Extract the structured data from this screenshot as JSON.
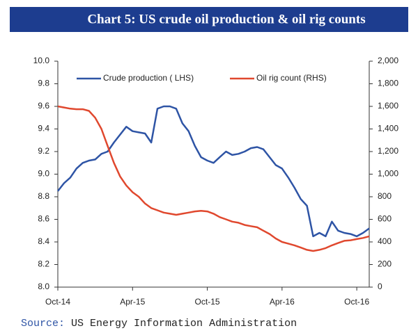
{
  "chart_data": {
    "type": "line",
    "title": "Chart 5: US crude oil production & oil rig counts",
    "source_label": "Source:",
    "source_text": "US Energy Information Administration",
    "categories": [
      "Oct-14",
      null,
      null,
      null,
      null,
      null,
      null,
      null,
      null,
      null,
      null,
      null,
      "Apr-15",
      null,
      null,
      null,
      null,
      null,
      null,
      null,
      null,
      null,
      null,
      null,
      "Oct-15",
      null,
      null,
      null,
      null,
      null,
      null,
      null,
      null,
      null,
      null,
      null,
      "Apr-16",
      null,
      null,
      null,
      null,
      null,
      null,
      null,
      null,
      null,
      null,
      null,
      "Oct-16",
      null,
      null
    ],
    "series": [
      {
        "name": "Crude production ( LHS)",
        "color": "#2e54a5",
        "axis": "y",
        "values": [
          8.85,
          8.92,
          8.97,
          9.05,
          9.1,
          9.12,
          9.13,
          9.18,
          9.2,
          9.28,
          9.35,
          9.42,
          9.38,
          9.37,
          9.36,
          9.28,
          9.58,
          9.6,
          9.6,
          9.58,
          9.45,
          9.38,
          9.25,
          9.15,
          9.12,
          9.1,
          9.15,
          9.2,
          9.17,
          9.18,
          9.2,
          9.23,
          9.24,
          9.22,
          9.15,
          9.08,
          9.05,
          8.97,
          8.88,
          8.78,
          8.72,
          8.45,
          8.48,
          8.45,
          8.58,
          8.5,
          8.48,
          8.47,
          8.45,
          8.48,
          8.52
        ]
      },
      {
        "name": "Oil rig count (RHS)",
        "color": "#e0482e",
        "axis": "y2",
        "values": [
          1600,
          1590,
          1580,
          1575,
          1575,
          1560,
          1500,
          1400,
          1250,
          1100,
          980,
          900,
          840,
          800,
          740,
          700,
          680,
          660,
          650,
          640,
          650,
          660,
          670,
          675,
          670,
          650,
          620,
          600,
          580,
          570,
          550,
          540,
          530,
          500,
          470,
          430,
          400,
          385,
          370,
          350,
          330,
          320,
          330,
          345,
          370,
          390,
          410,
          415,
          425,
          435,
          450
        ]
      }
    ],
    "ylim": [
      8.0,
      10.0
    ],
    "yticks": [
      {
        "value": 10,
        "label": "10.0"
      },
      9.8,
      9.6,
      9.4,
      9.2,
      {
        "value": 9,
        "label": "9.0"
      },
      8.8,
      8.6,
      8.4,
      8.2,
      {
        "value": 8,
        "label": "8.0"
      }
    ],
    "y2lim": [
      0,
      2000
    ],
    "y2ticks": [
      {
        "value": 2000,
        "label": "2,000"
      },
      {
        "value": 1800,
        "label": "1,800"
      },
      {
        "value": 1600,
        "label": "1,600"
      },
      {
        "value": 1400,
        "label": "1,400"
      },
      {
        "value": 1200,
        "label": "1,200"
      },
      {
        "value": 1000,
        "label": "1,000"
      },
      800,
      600,
      400,
      200,
      0
    ],
    "grid": false,
    "legend": "top"
  }
}
